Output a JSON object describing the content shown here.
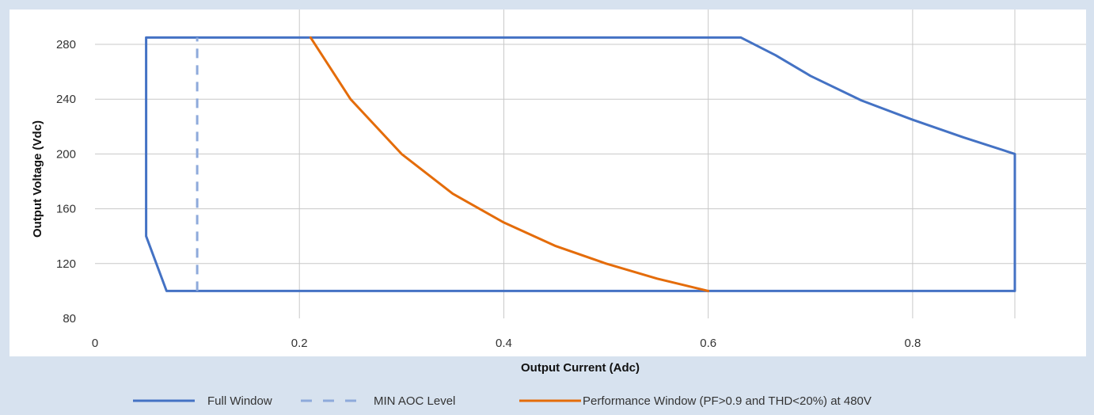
{
  "colors": {
    "page_background": "#d7e2ef",
    "plot_background": "#ffffff",
    "gridline": "#c8c8c8",
    "full_window": "#4472c4",
    "min_aoc": "#8eaadb",
    "performance": "#e46c0a"
  },
  "chart_data": {
    "type": "line",
    "title": "",
    "xlabel": "Output Current (Adc)",
    "ylabel": "Output Voltage (Vdc)",
    "xlim": [
      0,
      0.9
    ],
    "ylim": [
      80,
      280
    ],
    "x_ticks": [
      0,
      0.2,
      0.4,
      0.6,
      0.8
    ],
    "x_tick_labels": [
      "0",
      "0.2",
      "0.4",
      "0.6",
      "0.8"
    ],
    "y_ticks": [
      80,
      120,
      160,
      200,
      240,
      280
    ],
    "y_tick_labels": [
      "80",
      "120",
      "160",
      "200",
      "240",
      "280"
    ],
    "grid": "both",
    "legend_position": "bottom",
    "series": [
      {
        "name": "Full Window",
        "style": "solid",
        "color": "#4472c4",
        "x": [
          0.05,
          0.05,
          0.07,
          0.9,
          0.9,
          0.85,
          0.8,
          0.75,
          0.7,
          0.666,
          0.632,
          0.05
        ],
        "y": [
          285,
          140,
          100,
          100,
          200,
          212,
          225,
          239,
          257,
          272,
          285,
          285
        ]
      },
      {
        "name": "MIN AOC Level",
        "style": "dashed",
        "color": "#8eaadb",
        "x": [
          0.1,
          0.1
        ],
        "y": [
          100,
          285
        ]
      },
      {
        "name": "Performance Window (PF>0.9 and THD<20%) at 480V",
        "style": "solid",
        "color": "#e46c0a",
        "x": [
          0.211,
          0.25,
          0.3,
          0.35,
          0.4,
          0.45,
          0.5,
          0.55,
          0.6
        ],
        "y": [
          285,
          240,
          200,
          171,
          150,
          133,
          120,
          109,
          100
        ]
      }
    ]
  },
  "legend": {
    "full_window_label": "Full Window",
    "min_aoc_label": "MIN AOC Level",
    "performance_label": "Performance Window (PF>0.9 and THD<20%) at 480V"
  }
}
